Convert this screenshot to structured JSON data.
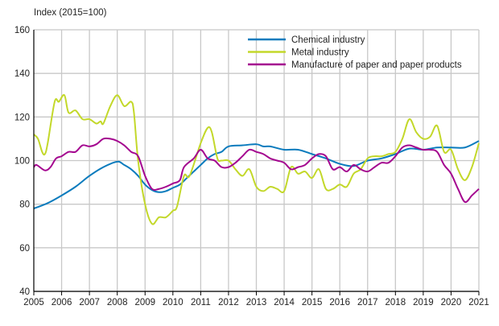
{
  "chart_data": {
    "type": "line",
    "title": "",
    "ylabel": "Index (2015=100)",
    "xlabel": "",
    "xlim": [
      2005,
      2021
    ],
    "ylim": [
      40,
      160
    ],
    "yticks": [
      40,
      60,
      80,
      100,
      120,
      140,
      160
    ],
    "xticks": [
      "2005",
      "2006",
      "2007",
      "2008",
      "2009",
      "2010",
      "2011",
      "2012",
      "2013",
      "2014",
      "2015",
      "2016",
      "2017",
      "2018",
      "2019",
      "2020",
      "2021"
    ],
    "grid": true,
    "legend_position": "top-right",
    "series": [
      {
        "name": "Chemical industry",
        "color": "#0a7bbd",
        "x": [
          2005,
          2005.5,
          2006,
          2006.5,
          2007,
          2007.5,
          2008,
          2008.25,
          2008.5,
          2008.75,
          2009,
          2009.25,
          2009.5,
          2009.75,
          2010,
          2010.25,
          2010.5,
          2010.75,
          2011,
          2011.25,
          2011.5,
          2011.75,
          2012,
          2012.5,
          2013,
          2013.25,
          2013.5,
          2014,
          2014.5,
          2015,
          2015.5,
          2016,
          2016.5,
          2017,
          2017.5,
          2018,
          2018.5,
          2019,
          2019.5,
          2020,
          2020.5,
          2021
        ],
        "y": [
          78,
          80.5,
          84,
          88,
          93,
          97,
          99.5,
          98,
          96,
          93,
          89,
          86.5,
          85.5,
          86,
          87.5,
          89,
          92,
          95,
          98,
          101,
          103,
          104,
          106.5,
          107,
          107.5,
          106.5,
          106.5,
          105,
          105,
          103,
          101,
          98.5,
          97.5,
          100,
          101,
          103,
          105.5,
          105,
          106,
          106,
          106,
          109
        ]
      },
      {
        "name": "Metal industry",
        "color": "#c3d82a",
        "x": [
          2005,
          2005.15,
          2005.3,
          2005.4,
          2005.5,
          2005.75,
          2005.9,
          2006.1,
          2006.25,
          2006.5,
          2006.75,
          2007,
          2007.25,
          2007.4,
          2007.5,
          2007.75,
          2008,
          2008.25,
          2008.5,
          2008.6,
          2008.75,
          2009,
          2009.25,
          2009.5,
          2009.75,
          2010,
          2010.15,
          2010.4,
          2010.6,
          2011,
          2011.25,
          2011.4,
          2011.6,
          2011.75,
          2012,
          2012.25,
          2012.5,
          2012.75,
          2013,
          2013.25,
          2013.5,
          2013.75,
          2014,
          2014.25,
          2014.5,
          2014.75,
          2015,
          2015.25,
          2015.5,
          2015.75,
          2016,
          2016.25,
          2016.5,
          2016.75,
          2017,
          2017.25,
          2017.5,
          2017.75,
          2018,
          2018.25,
          2018.5,
          2018.75,
          2019,
          2019.25,
          2019.5,
          2019.75,
          2020,
          2020.25,
          2020.5,
          2020.75,
          2021
        ],
        "y": [
          112,
          110,
          104,
          103,
          108,
          127,
          127,
          130,
          122,
          123,
          119,
          119,
          117,
          118,
          117,
          125,
          130,
          125,
          127,
          122,
          100,
          80,
          71,
          74,
          74,
          77,
          79,
          93,
          93,
          108,
          115,
          113,
          101,
          100,
          100,
          96,
          93,
          96,
          88,
          86,
          88,
          87,
          86,
          97,
          94,
          95,
          92,
          96,
          87,
          87,
          89,
          88,
          94,
          96,
          101,
          102,
          102,
          103,
          104,
          110,
          119,
          113,
          110,
          111,
          116,
          104,
          105,
          96,
          91,
          97,
          108
        ]
      },
      {
        "name": "Manufacture of paper and paper products",
        "color": "#a4068f",
        "x": [
          2005,
          2005.1,
          2005.4,
          2005.6,
          2005.8,
          2006,
          2006.25,
          2006.5,
          2006.75,
          2007,
          2007.25,
          2007.5,
          2007.75,
          2008,
          2008.25,
          2008.5,
          2008.75,
          2009,
          2009.25,
          2009.5,
          2009.75,
          2010,
          2010.25,
          2010.4,
          2010.75,
          2011,
          2011.25,
          2011.5,
          2011.75,
          2012,
          2012.25,
          2012.5,
          2012.75,
          2013,
          2013.25,
          2013.5,
          2013.75,
          2014,
          2014.25,
          2014.5,
          2014.75,
          2015,
          2015.25,
          2015.5,
          2015.75,
          2016,
          2016.25,
          2016.5,
          2016.75,
          2017,
          2017.25,
          2017.5,
          2017.75,
          2018,
          2018.25,
          2018.5,
          2018.75,
          2019,
          2019.25,
          2019.5,
          2019.75,
          2020,
          2020.25,
          2020.5,
          2020.75,
          2021
        ],
        "y": [
          97,
          98,
          95.5,
          97,
          101,
          102,
          104,
          104,
          107,
          106.5,
          107.5,
          110,
          110,
          109,
          107,
          104,
          102,
          93,
          87,
          87,
          88,
          89.5,
          91,
          97,
          101,
          105,
          101,
          100,
          97,
          97,
          99,
          102,
          105,
          104,
          103,
          101,
          100,
          99,
          96,
          97,
          98,
          101,
          103,
          102,
          96,
          97,
          95,
          98,
          96,
          95,
          97,
          99,
          99,
          102,
          106,
          107,
          106,
          105,
          105,
          104,
          98,
          94,
          87,
          81,
          84,
          87
        ]
      }
    ]
  }
}
